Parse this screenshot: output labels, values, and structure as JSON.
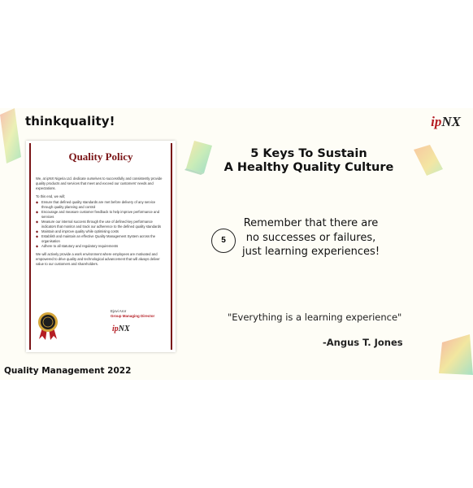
{
  "header": {
    "brand": "thinkquality!",
    "logo_ip": "ip",
    "logo_nx": "NX"
  },
  "policy": {
    "title": "Quality Policy",
    "intro": "We, at ipNX Nigeria Ltd. dedicate ourselves to successfully and consistently provide quality products and services that meet and exceed our customers' needs and expectations.",
    "lead": "To this end, we will;",
    "items": [
      "Ensure that defined quality standards are met before delivery of any service through quality planning and control",
      "Encourage and measure customer feedback to help improve performance and services",
      "Measure our internal success through the use of defined key performance indicators that monitor and track our adherence to the defined quality standards",
      "Maintain and improve quality while optimising costs",
      "Establish and maintain an effective Quality Management System across the organisation",
      "Adhere to all statutory and regulatory requirements"
    ],
    "closing": "We will actively provide a work environment where employees are motivated and empowered to drive quality and technological advancement that will always deliver value to our customers and shareholders.",
    "signatory_name": "Ejovi Aror",
    "signatory_role": "Group Managing Director",
    "logo_ip": "ip",
    "logo_nx": "NX"
  },
  "main": {
    "heading_line1": "5 Keys To Sustain",
    "heading_line2": "A Healthy Quality Culture",
    "key_number": "5",
    "key_text": "Remember that there are no successes or failures, just learning experiences!",
    "quote": "\"Everything is a learning experience\"",
    "author": "-Angus T. Jones"
  },
  "footer": {
    "text": "Quality Management 2022"
  },
  "colors": {
    "brand_red": "#b51d24",
    "policy_maroon": "#7a1416",
    "slide_bg": "#fefdf6"
  }
}
